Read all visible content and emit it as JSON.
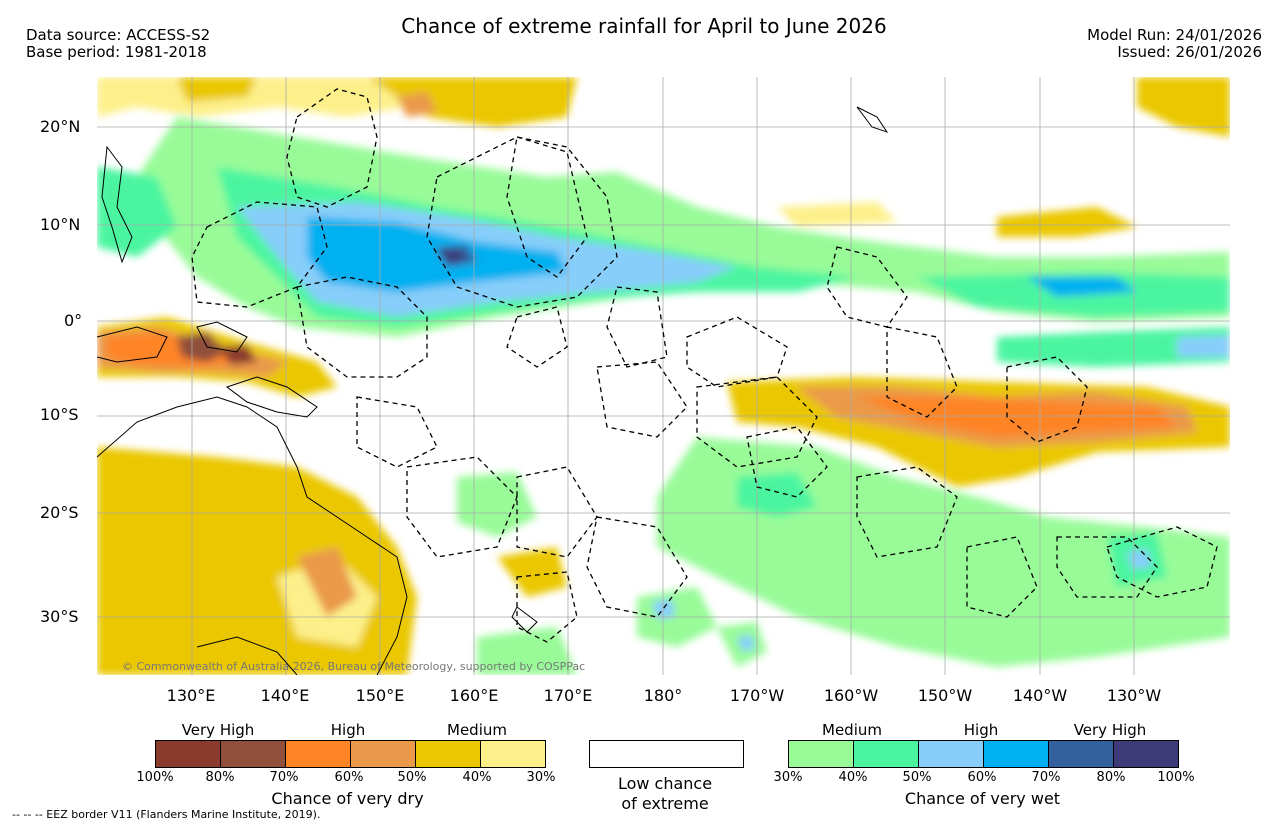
{
  "header": {
    "title": "Chance of extreme rainfall for April to June 2026",
    "data_source": "Data source: ACCESS-S2",
    "base_period": "Base period: 1981-2018",
    "model_run": "Model Run: 24/01/2026",
    "issued": "Issued: 26/01/2026"
  },
  "map": {
    "lat_labels": [
      "20°N",
      "10°N",
      "0°",
      "10°S",
      "20°S",
      "30°S"
    ],
    "lon_labels": [
      "130°E",
      "140°E",
      "150°E",
      "160°E",
      "170°E",
      "180°",
      "170°W",
      "160°W",
      "150°W",
      "140°W",
      "130°W"
    ],
    "copyright": "© Commonwealth of Australia 2026, Bureau of Meteorology, supported by COSPPac"
  },
  "legend_dry": {
    "levels": [
      "Very High",
      "High",
      "Medium"
    ],
    "colors": [
      "#8b3a2e",
      "#8f4f3a",
      "#ff8426",
      "#ea9a4a",
      "#eac700",
      "#fdf08a"
    ],
    "ticks": [
      "100%",
      "80%",
      "70%",
      "60%",
      "50%",
      "40%",
      "30%"
    ],
    "caption": "Chance of very dry"
  },
  "legend_low": {
    "line1": "Low chance",
    "line2": "of extreme"
  },
  "legend_wet": {
    "levels": [
      "Medium",
      "High",
      "Very High"
    ],
    "colors": [
      "#98fb98",
      "#4bf5a0",
      "#87cefa",
      "#00b0f0",
      "#32619e",
      "#3d3a78"
    ],
    "ticks": [
      "30%",
      "40%",
      "50%",
      "60%",
      "70%",
      "80%",
      "100%"
    ],
    "caption": "Chance of very wet"
  },
  "footer": "--  --  -- EEZ border V11 (Flanders Marine Institute, 2019)."
}
